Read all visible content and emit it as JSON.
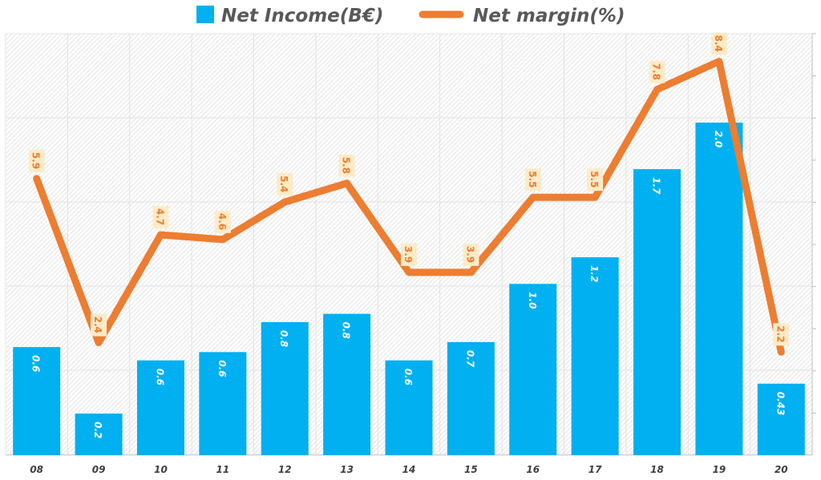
{
  "chart_data": {
    "type": "bar+line",
    "categories": [
      "08",
      "09",
      "10",
      "11",
      "12",
      "13",
      "14",
      "15",
      "16",
      "17",
      "18",
      "19",
      "20"
    ],
    "series": [
      {
        "name": "Net Income(B€)",
        "type": "bar",
        "color": "#00b0f0",
        "values": [
          0.65,
          0.25,
          0.57,
          0.62,
          0.8,
          0.85,
          0.57,
          0.68,
          1.03,
          1.19,
          1.72,
          2.0,
          0.43
        ],
        "labels": [
          "0.6",
          "0.2",
          "0.6",
          "0.6",
          "0.8",
          "0.8",
          "0.6",
          "0.7",
          "1.0",
          "1.2",
          "1.7",
          "2.0",
          "0.43"
        ]
      },
      {
        "name": "Net margin(%)",
        "type": "line",
        "color": "#ed7d31",
        "values": [
          5.9,
          2.4,
          4.7,
          4.6,
          5.4,
          5.8,
          3.9,
          3.9,
          5.5,
          5.5,
          7.8,
          8.4,
          2.2
        ],
        "labels": [
          "5.9",
          "2.4",
          "4.7",
          "4.6",
          "5.4",
          "5.8",
          "3.9",
          "3.9",
          "5.5",
          "5.5",
          "7.8",
          "8.4",
          "2.2"
        ]
      }
    ],
    "legend_position": "top",
    "grid": true
  }
}
